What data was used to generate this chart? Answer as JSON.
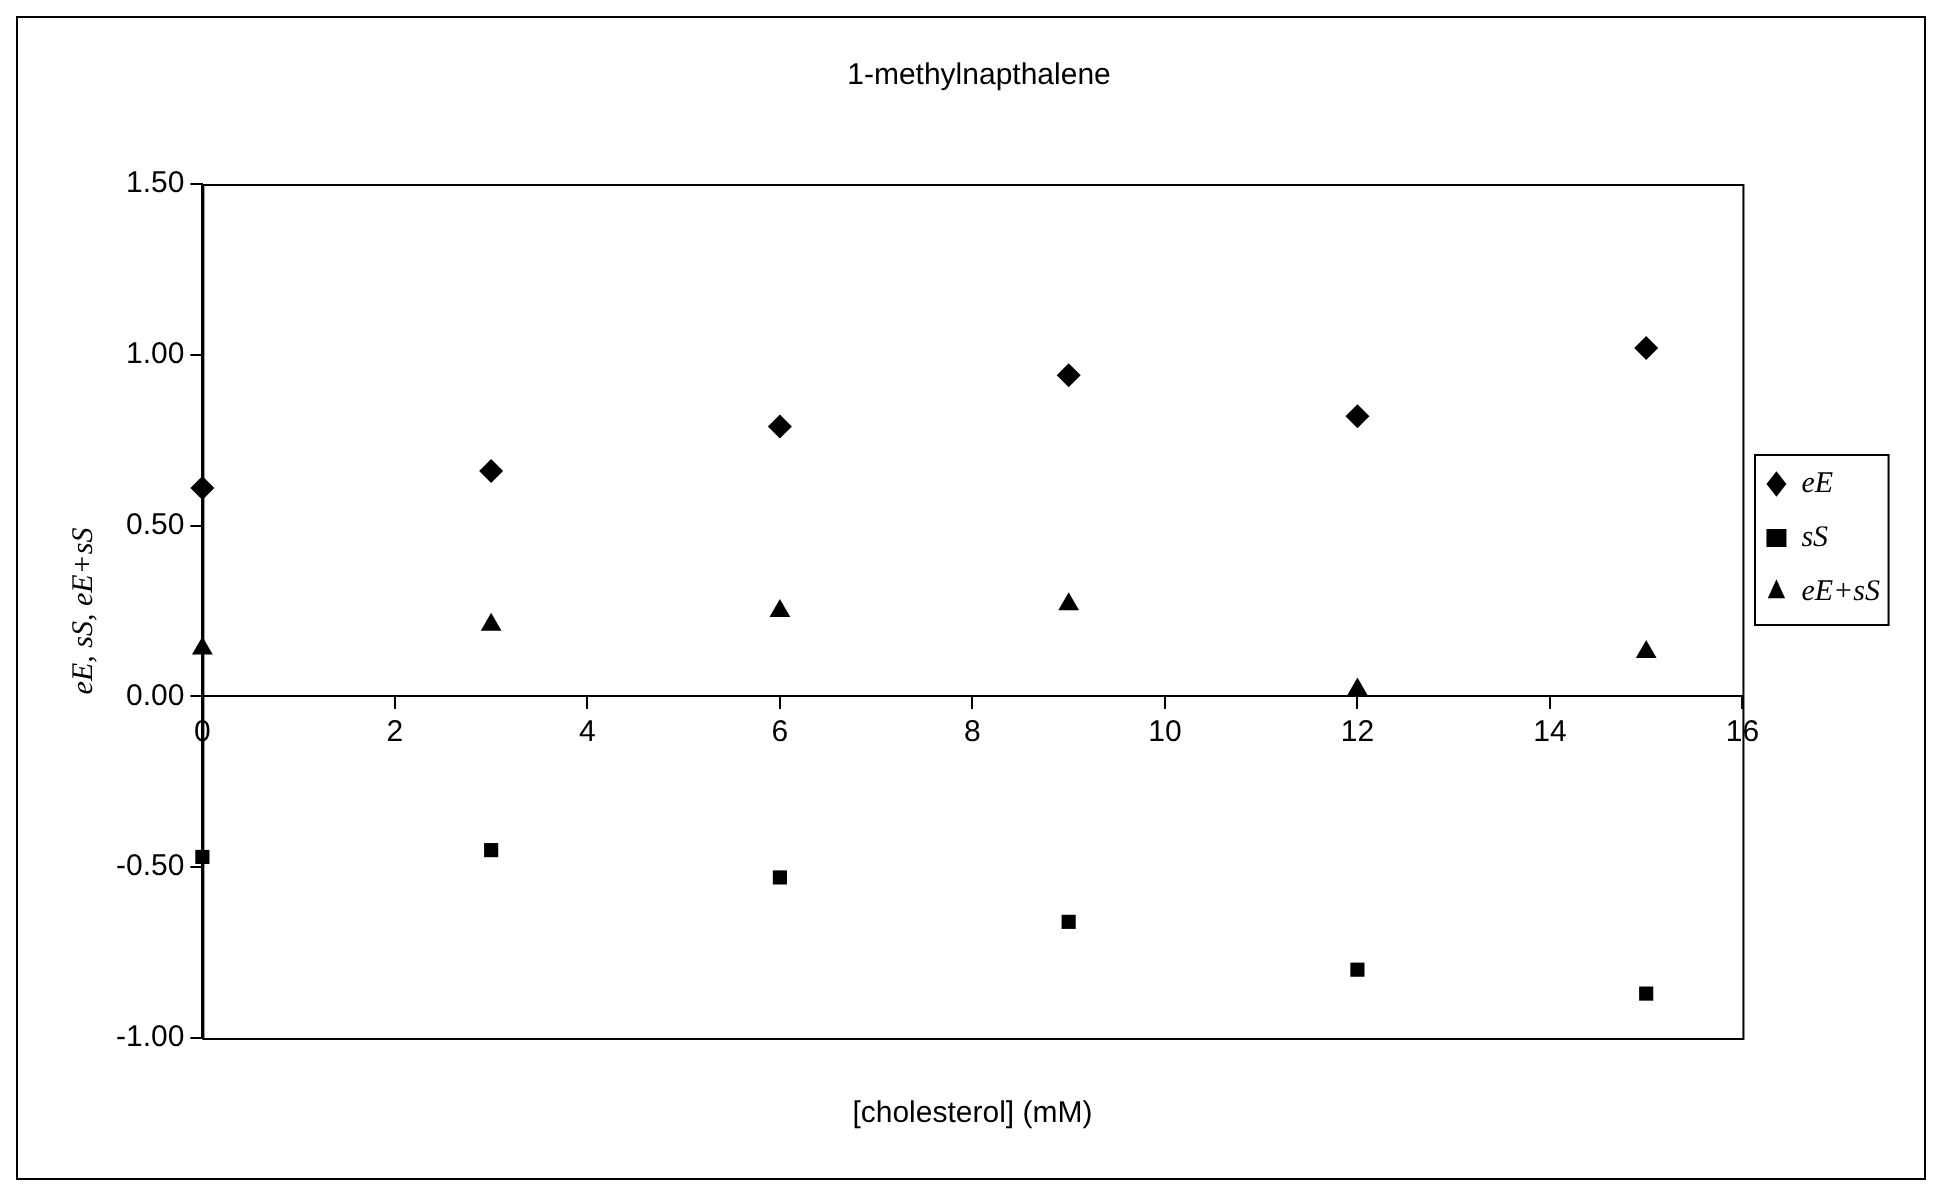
{
  "chart_data": {
    "type": "scatter",
    "title": "1-methylnapthalene",
    "xlabel": "[cholesterol] (mM)",
    "ylabel": "eE, sS, eE+sS",
    "x": [
      0,
      3,
      6,
      9,
      12,
      15
    ],
    "series": [
      {
        "name": "eE",
        "color": "#000000",
        "marker": "diamond",
        "values": [
          0.61,
          0.66,
          0.79,
          0.94,
          0.82,
          1.02
        ]
      },
      {
        "name": "sS",
        "color": "#000000",
        "marker": "square",
        "values": [
          -0.47,
          -0.45,
          -0.53,
          -0.66,
          -0.8,
          -0.87
        ]
      },
      {
        "name": "eE+sS",
        "color": "#000000",
        "marker": "triangle",
        "values": [
          0.14,
          0.21,
          0.25,
          0.27,
          0.02,
          0.13
        ]
      }
    ],
    "xlim": [
      0,
      16
    ],
    "xticks": [
      0,
      2,
      4,
      6,
      8,
      10,
      12,
      14,
      16
    ],
    "ylim": [
      -1,
      1.5
    ],
    "yticks": [
      {
        "value": -1,
        "label": "-1.00"
      },
      {
        "value": -0.5,
        "label": "-0.50"
      },
      {
        "value": 0,
        "label": "0.00"
      },
      {
        "value": 0.5,
        "label": "0.50"
      },
      {
        "value": 1,
        "label": "1.00"
      },
      {
        "value": 1.5,
        "label": "1.50"
      }
    ],
    "grid": false,
    "legend": "right"
  }
}
